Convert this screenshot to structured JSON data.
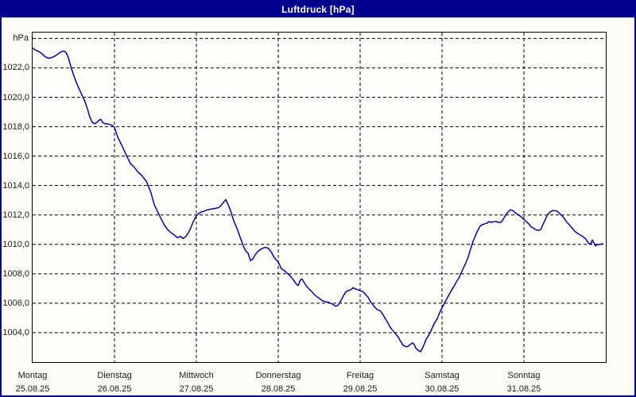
{
  "window": {
    "title": "Luftdruck [hPa]"
  },
  "colors": {
    "titlebar_bg": "#00008F",
    "titlebar_text": "#FFFFFF",
    "window_border": "#00008F",
    "window_bg": "#FDFDF8",
    "plot_bg": "#FEFEFB",
    "grid": "#000000",
    "line": "#0000C8",
    "label_text": "#1A1A1A"
  },
  "chart_data": {
    "type": "line",
    "title": "Luftdruck [hPa]",
    "unit_label": "hPa",
    "grid": "dashed",
    "legend": "none",
    "xlim_days": [
      0,
      7
    ],
    "ylim": [
      1002.0,
      1024.4
    ],
    "y_gridline_values": [
      1004,
      1006,
      1008,
      1010,
      1012,
      1014,
      1016,
      1018,
      1020,
      1022,
      1024
    ],
    "y_ticks": [
      {
        "value": 1022,
        "label": "1022,0"
      },
      {
        "value": 1020,
        "label": "1020,0"
      },
      {
        "value": 1018,
        "label": "1018,0"
      },
      {
        "value": 1016,
        "label": "1016,0"
      },
      {
        "value": 1014,
        "label": "1014,0"
      },
      {
        "value": 1012,
        "label": "1012,0"
      },
      {
        "value": 1010,
        "label": "1010,0"
      },
      {
        "value": 1008,
        "label": "1008,0"
      },
      {
        "value": 1006,
        "label": "1006,0"
      },
      {
        "value": 1004,
        "label": "1004,0"
      }
    ],
    "x_gridline_days": [
      1,
      2,
      3,
      4,
      5,
      6
    ],
    "x_labels": [
      {
        "pos": 0,
        "day": "Montag",
        "date": "25.08.25"
      },
      {
        "pos": 1,
        "day": "Dienstag",
        "date": "26.08.25"
      },
      {
        "pos": 2,
        "day": "Mittwoch",
        "date": "27.08.25"
      },
      {
        "pos": 3,
        "day": "Donnerstag",
        "date": "28.08.25"
      },
      {
        "pos": 4,
        "day": "Freitag",
        "date": "29.08.25"
      },
      {
        "pos": 5,
        "day": "Samstag",
        "date": "30.08.25"
      },
      {
        "pos": 6,
        "day": "Sonntag",
        "date": "31.08.25"
      }
    ],
    "series": [
      {
        "name": "Luftdruck",
        "unit": "hPa",
        "points": [
          [
            0.0,
            1023.35
          ],
          [
            0.039,
            1023.2
          ],
          [
            0.078,
            1023.1
          ],
          [
            0.117,
            1022.95
          ],
          [
            0.155,
            1022.75
          ],
          [
            0.194,
            1022.65
          ],
          [
            0.233,
            1022.7
          ],
          [
            0.272,
            1022.8
          ],
          [
            0.311,
            1022.95
          ],
          [
            0.35,
            1023.1
          ],
          [
            0.379,
            1023.15
          ],
          [
            0.408,
            1023.05
          ],
          [
            0.437,
            1022.7
          ],
          [
            0.466,
            1022.1
          ],
          [
            0.495,
            1021.6
          ],
          [
            0.524,
            1021.15
          ],
          [
            0.553,
            1020.75
          ],
          [
            0.583,
            1020.4
          ],
          [
            0.612,
            1020.05
          ],
          [
            0.641,
            1019.7
          ],
          [
            0.67,
            1019.2
          ],
          [
            0.699,
            1018.65
          ],
          [
            0.728,
            1018.3
          ],
          [
            0.757,
            1018.2
          ],
          [
            0.786,
            1018.3
          ],
          [
            0.816,
            1018.45
          ],
          [
            0.835,
            1018.5
          ],
          [
            0.854,
            1018.3
          ],
          [
            0.883,
            1018.2
          ],
          [
            0.913,
            1018.2
          ],
          [
            0.942,
            1018.15
          ],
          [
            0.971,
            1018.1
          ],
          [
            1.0,
            1017.95
          ],
          [
            1.039,
            1017.3
          ],
          [
            1.087,
            1016.75
          ],
          [
            1.146,
            1016.05
          ],
          [
            1.194,
            1015.5
          ],
          [
            1.233,
            1015.3
          ],
          [
            1.282,
            1014.95
          ],
          [
            1.33,
            1014.7
          ],
          [
            1.388,
            1014.3
          ],
          [
            1.408,
            1014.05
          ],
          [
            1.447,
            1013.5
          ],
          [
            1.485,
            1012.7
          ],
          [
            1.524,
            1012.25
          ],
          [
            1.573,
            1011.7
          ],
          [
            1.612,
            1011.3
          ],
          [
            1.65,
            1011.0
          ],
          [
            1.689,
            1010.8
          ],
          [
            1.728,
            1010.65
          ],
          [
            1.767,
            1010.45
          ],
          [
            1.806,
            1010.55
          ],
          [
            1.835,
            1010.4
          ],
          [
            1.864,
            1010.5
          ],
          [
            1.893,
            1010.7
          ],
          [
            1.922,
            1011.0
          ],
          [
            1.951,
            1011.4
          ],
          [
            1.981,
            1011.75
          ],
          [
            2.0,
            1011.95
          ],
          [
            2.039,
            1012.15
          ],
          [
            2.087,
            1012.25
          ],
          [
            2.136,
            1012.35
          ],
          [
            2.184,
            1012.4
          ],
          [
            2.233,
            1012.45
          ],
          [
            2.272,
            1012.5
          ],
          [
            2.301,
            1012.65
          ],
          [
            2.33,
            1012.85
          ],
          [
            2.359,
            1013.05
          ],
          [
            2.388,
            1012.7
          ],
          [
            2.417,
            1012.3
          ],
          [
            2.456,
            1011.6
          ],
          [
            2.495,
            1011.1
          ],
          [
            2.534,
            1010.5
          ],
          [
            2.573,
            1009.9
          ],
          [
            2.602,
            1009.55
          ],
          [
            2.631,
            1009.4
          ],
          [
            2.66,
            1008.9
          ],
          [
            2.689,
            1009.0
          ],
          [
            2.718,
            1009.3
          ],
          [
            2.757,
            1009.55
          ],
          [
            2.796,
            1009.7
          ],
          [
            2.835,
            1009.8
          ],
          [
            2.874,
            1009.75
          ],
          [
            2.913,
            1009.5
          ],
          [
            2.951,
            1009.1
          ],
          [
            3.0,
            1008.8
          ],
          [
            3.039,
            1008.35
          ],
          [
            3.078,
            1008.2
          ],
          [
            3.117,
            1008.0
          ],
          [
            3.146,
            1007.85
          ],
          [
            3.184,
            1007.6
          ],
          [
            3.214,
            1007.35
          ],
          [
            3.243,
            1007.2
          ],
          [
            3.272,
            1007.6
          ],
          [
            3.291,
            1007.65
          ],
          [
            3.311,
            1007.45
          ],
          [
            3.34,
            1007.2
          ],
          [
            3.379,
            1006.95
          ],
          [
            3.408,
            1006.8
          ],
          [
            3.447,
            1006.55
          ],
          [
            3.495,
            1006.35
          ],
          [
            3.544,
            1006.15
          ],
          [
            3.583,
            1006.1
          ],
          [
            3.621,
            1006.05
          ],
          [
            3.66,
            1005.95
          ],
          [
            3.699,
            1005.8
          ],
          [
            3.728,
            1005.85
          ],
          [
            3.757,
            1006.1
          ],
          [
            3.786,
            1006.4
          ],
          [
            3.816,
            1006.7
          ],
          [
            3.845,
            1006.85
          ],
          [
            3.883,
            1006.9
          ],
          [
            3.913,
            1007.05
          ],
          [
            3.951,
            1006.95
          ],
          [
            3.981,
            1006.9
          ],
          [
            4.0,
            1006.85
          ],
          [
            4.029,
            1006.8
          ],
          [
            4.058,
            1006.65
          ],
          [
            4.097,
            1006.4
          ],
          [
            4.126,
            1006.1
          ],
          [
            4.155,
            1005.9
          ],
          [
            4.184,
            1005.7
          ],
          [
            4.214,
            1005.55
          ],
          [
            4.243,
            1005.5
          ],
          [
            4.272,
            1005.3
          ],
          [
            4.301,
            1005.0
          ],
          [
            4.33,
            1004.75
          ],
          [
            4.369,
            1004.35
          ],
          [
            4.398,
            1004.15
          ],
          [
            4.427,
            1003.95
          ],
          [
            4.466,
            1003.7
          ],
          [
            4.495,
            1003.4
          ],
          [
            4.524,
            1003.15
          ],
          [
            4.553,
            1003.05
          ],
          [
            4.583,
            1003.05
          ],
          [
            4.612,
            1003.2
          ],
          [
            4.641,
            1003.3
          ],
          [
            4.66,
            1003.2
          ],
          [
            4.68,
            1002.95
          ],
          [
            4.709,
            1002.8
          ],
          [
            4.738,
            1002.7
          ],
          [
            4.767,
            1003.0
          ],
          [
            4.806,
            1003.55
          ],
          [
            4.835,
            1003.8
          ],
          [
            4.864,
            1004.1
          ],
          [
            4.903,
            1004.6
          ],
          [
            4.942,
            1004.95
          ],
          [
            4.971,
            1005.35
          ],
          [
            5.0,
            1005.7
          ],
          [
            5.029,
            1006.0
          ],
          [
            5.058,
            1006.3
          ],
          [
            5.087,
            1006.6
          ],
          [
            5.117,
            1006.9
          ],
          [
            5.146,
            1007.15
          ],
          [
            5.175,
            1007.45
          ],
          [
            5.204,
            1007.7
          ],
          [
            5.233,
            1008.05
          ],
          [
            5.262,
            1008.4
          ],
          [
            5.291,
            1008.75
          ],
          [
            5.32,
            1009.15
          ],
          [
            5.35,
            1009.7
          ],
          [
            5.379,
            1010.2
          ],
          [
            5.408,
            1010.6
          ],
          [
            5.437,
            1010.95
          ],
          [
            5.466,
            1011.25
          ],
          [
            5.495,
            1011.35
          ],
          [
            5.524,
            1011.4
          ],
          [
            5.553,
            1011.45
          ],
          [
            5.573,
            1011.55
          ],
          [
            5.602,
            1011.5
          ],
          [
            5.631,
            1011.55
          ],
          [
            5.66,
            1011.55
          ],
          [
            5.689,
            1011.5
          ],
          [
            5.718,
            1011.5
          ],
          [
            5.748,
            1011.7
          ],
          [
            5.777,
            1012.0
          ],
          [
            5.806,
            1012.2
          ],
          [
            5.835,
            1012.35
          ],
          [
            5.864,
            1012.3
          ],
          [
            5.893,
            1012.15
          ],
          [
            5.922,
            1012.05
          ],
          [
            5.961,
            1011.9
          ],
          [
            6.0,
            1011.7
          ],
          [
            6.029,
            1011.55
          ],
          [
            6.058,
            1011.4
          ],
          [
            6.087,
            1011.2
          ],
          [
            6.117,
            1011.1
          ],
          [
            6.146,
            1011.0
          ],
          [
            6.175,
            1010.95
          ],
          [
            6.204,
            1011.0
          ],
          [
            6.233,
            1011.35
          ],
          [
            6.262,
            1011.7
          ],
          [
            6.291,
            1012.05
          ],
          [
            6.32,
            1012.2
          ],
          [
            6.35,
            1012.3
          ],
          [
            6.379,
            1012.3
          ],
          [
            6.408,
            1012.25
          ],
          [
            6.437,
            1012.1
          ],
          [
            6.466,
            1011.95
          ],
          [
            6.495,
            1011.75
          ],
          [
            6.524,
            1011.5
          ],
          [
            6.553,
            1011.35
          ],
          [
            6.583,
            1011.15
          ],
          [
            6.612,
            1010.95
          ],
          [
            6.641,
            1010.8
          ],
          [
            6.67,
            1010.7
          ],
          [
            6.699,
            1010.6
          ],
          [
            6.728,
            1010.5
          ],
          [
            6.757,
            1010.35
          ],
          [
            6.786,
            1010.1
          ],
          [
            6.816,
            1010.0
          ],
          [
            6.835,
            1010.3
          ],
          [
            6.854,
            1010.1
          ],
          [
            6.874,
            1009.9
          ],
          [
            6.903,
            1010.0
          ],
          [
            6.932,
            1010.0
          ],
          [
            6.961,
            1010.05
          ]
        ]
      }
    ]
  }
}
